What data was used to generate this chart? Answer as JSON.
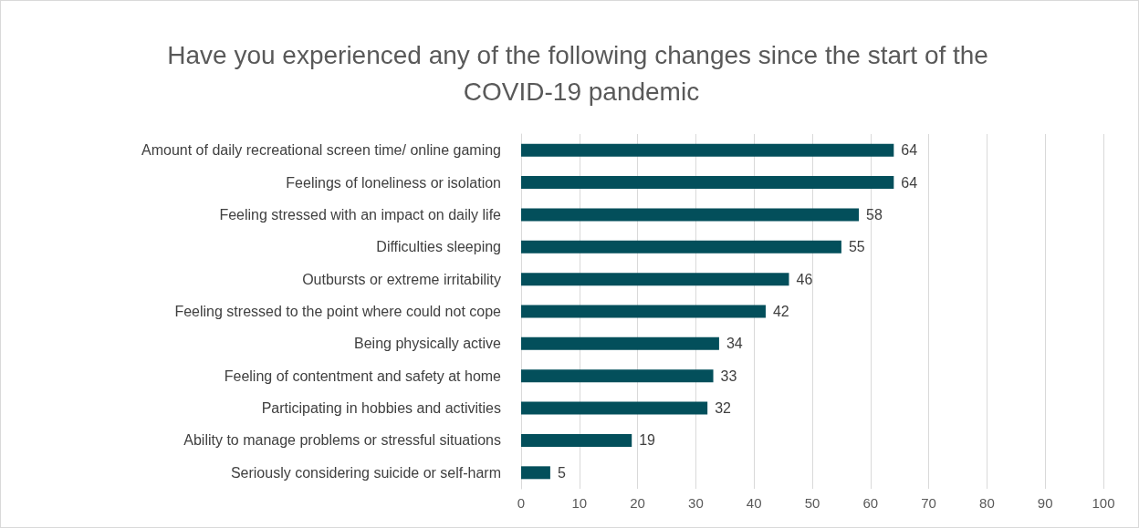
{
  "chart_data": {
    "type": "bar",
    "orientation": "horizontal",
    "title": "Have you experienced any of the following changes since the start of the COVID-19 pandemic",
    "categories": [
      "Amount of daily recreational screen time/ online gaming",
      "Feelings of loneliness or isolation",
      "Feeling stressed with an impact on daily life",
      "Difficulties sleeping",
      "Outbursts or extreme irritability",
      "Feeling stressed to the point where could not cope",
      "Being physically active",
      "Feeling of contentment and safety at home",
      "Participating in hobbies and activities",
      "Ability to manage problems or stressful situations",
      "Seriously considering suicide or self-harm"
    ],
    "values": [
      64,
      64,
      58,
      55,
      46,
      42,
      34,
      33,
      32,
      19,
      5
    ],
    "color": "#034f5b",
    "xlim": [
      0,
      100
    ],
    "xticks": [
      0,
      10,
      20,
      30,
      40,
      50,
      60,
      70,
      80,
      90,
      100
    ],
    "grid": "x",
    "data_labels": true
  }
}
